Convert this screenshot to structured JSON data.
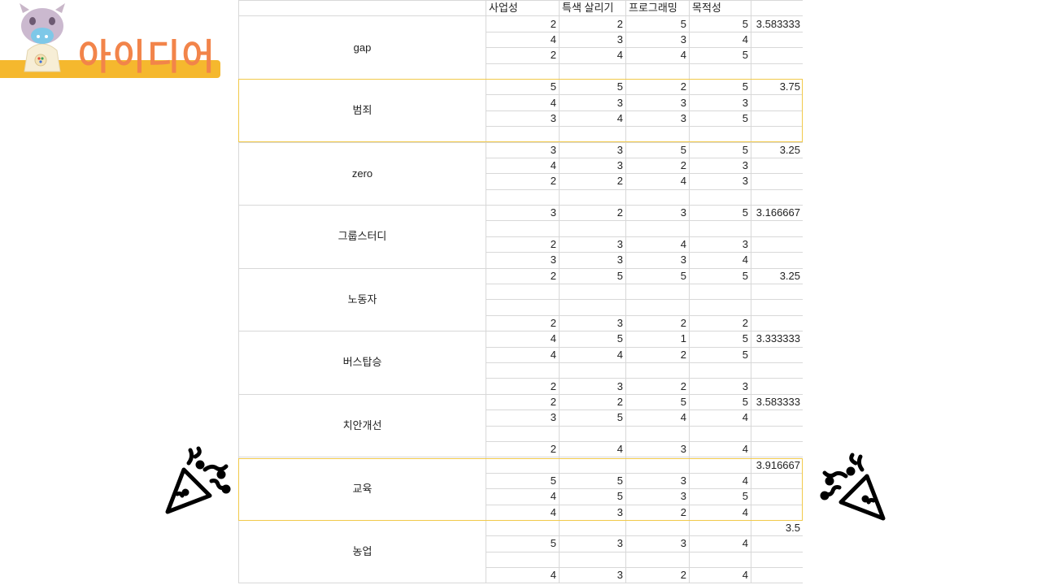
{
  "logo": {
    "text": "아이디어",
    "accent": "#f2844a",
    "bar_color": "#f5b82e"
  },
  "sheet": {
    "headers": [
      "",
      "사업성",
      "특색 살리기",
      "프로그래밍",
      "목적성",
      ""
    ],
    "groups": [
      {
        "name": "gap",
        "avg": "3.583333",
        "rows": [
          [
            "2",
            "2",
            "5",
            "5"
          ],
          [
            "4",
            "3",
            "3",
            "4"
          ],
          [
            "2",
            "4",
            "4",
            "5"
          ],
          [
            "",
            "",
            "",
            ""
          ]
        ]
      },
      {
        "name": "범죄",
        "avg": "3.75",
        "rows": [
          [
            "5",
            "5",
            "2",
            "5"
          ],
          [
            "4",
            "3",
            "3",
            "3"
          ],
          [
            "3",
            "4",
            "3",
            "5"
          ],
          [
            "",
            "",
            "",
            ""
          ]
        ]
      },
      {
        "name": "zero",
        "avg": "3.25",
        "rows": [
          [
            "3",
            "3",
            "5",
            "5"
          ],
          [
            "4",
            "3",
            "2",
            "3"
          ],
          [
            "2",
            "2",
            "4",
            "3"
          ],
          [
            "",
            "",
            "",
            ""
          ]
        ]
      },
      {
        "name": "그룹스터디",
        "avg": "3.166667",
        "rows": [
          [
            "3",
            "2",
            "3",
            "5"
          ],
          [
            "",
            "",
            "",
            ""
          ],
          [
            "2",
            "3",
            "4",
            "3"
          ],
          [
            "3",
            "3",
            "3",
            "4"
          ]
        ]
      },
      {
        "name": "노동자",
        "avg": "3.25",
        "rows": [
          [
            "2",
            "5",
            "5",
            "5"
          ],
          [
            "",
            "",
            "",
            ""
          ],
          [
            "",
            "",
            "",
            ""
          ],
          [
            "2",
            "3",
            "2",
            "2"
          ]
        ]
      },
      {
        "name": "버스탑승",
        "avg": "3.333333",
        "rows": [
          [
            "4",
            "5",
            "1",
            "5"
          ],
          [
            "4",
            "4",
            "2",
            "5"
          ],
          [
            "",
            "",
            "",
            ""
          ],
          [
            "2",
            "3",
            "2",
            "3"
          ]
        ]
      },
      {
        "name": "치안개선",
        "avg": "3.583333",
        "rows": [
          [
            "2",
            "2",
            "5",
            "5"
          ],
          [
            "3",
            "5",
            "4",
            "4"
          ],
          [
            "",
            "",
            "",
            ""
          ],
          [
            "2",
            "4",
            "3",
            "4"
          ]
        ]
      },
      {
        "name": "교육",
        "avg": "3.916667",
        "rows": [
          [
            "",
            "",
            "",
            ""
          ],
          [
            "5",
            "5",
            "3",
            "4"
          ],
          [
            "4",
            "5",
            "3",
            "5"
          ],
          [
            "4",
            "3",
            "2",
            "4"
          ]
        ]
      },
      {
        "name": "농업",
        "avg": "3.5",
        "rows": [
          [
            "",
            "",
            "",
            ""
          ],
          [
            "5",
            "3",
            "3",
            "4"
          ],
          [
            "",
            "",
            "",
            ""
          ],
          [
            "4",
            "3",
            "2",
            "4"
          ]
        ]
      }
    ]
  },
  "decorations": {
    "left_icon": "party-popper-icon",
    "right_icon": "party-popper-icon"
  }
}
